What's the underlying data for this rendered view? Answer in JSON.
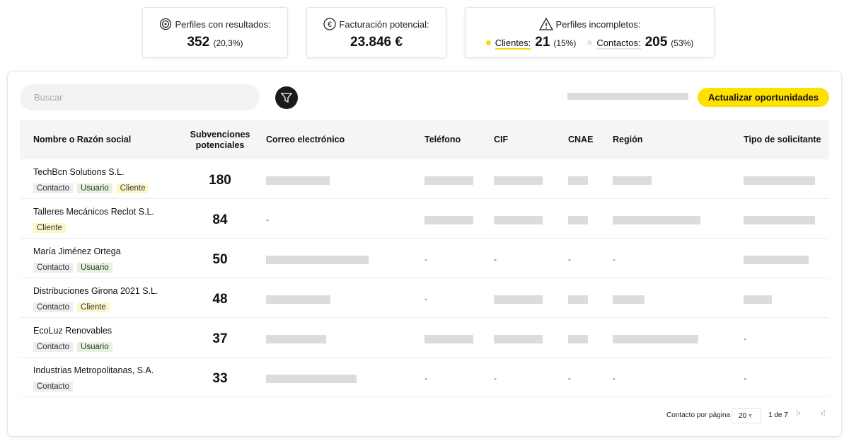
{
  "stats": [
    {
      "label": "Perfiles con resultados:",
      "value": "352",
      "note": "(20,3%)"
    },
    {
      "label": "Facturación potencial:",
      "value": "23.846 €"
    },
    {
      "label": "Perfiles incompletos:",
      "items": [
        {
          "label": "Clientes:",
          "value": "21",
          "note": "(15%)",
          "color": "#f5d90a"
        },
        {
          "label": "Contactos:",
          "value": "205",
          "note": "(53%)",
          "color": "#e6e6e6"
        }
      ]
    }
  ],
  "toolbar": {
    "search_placeholder": "Buscar",
    "button": "Actualizar oportunidades"
  },
  "table": {
    "columns": [
      "Nombre o Razón social",
      "Subvenciones potenciales",
      "Correo electrónico",
      "Teléfono",
      "CIF",
      "CNAE",
      "Región",
      "Tipo de solicitante"
    ],
    "rows": [
      {
        "name": "TechBcn Solutions S.L.",
        "tags": [
          {
            "label": "Contacto",
            "color": "#eeeeee"
          },
          {
            "label": "Usuario",
            "color": "#e6f2dc"
          },
          {
            "label": "Cliente",
            "color": "#fcf6c8"
          }
        ],
        "grants": 180,
        "cells": [
          null,
          null,
          null,
          null,
          null,
          null
        ]
      },
      {
        "name": "Talleres Mecánicos Reclot S.L.",
        "tags": [
          {
            "label": "Cliente",
            "color": "#fcf6c8"
          }
        ],
        "grants": 84,
        "cells": [
          "-",
          null,
          null,
          null,
          null,
          null
        ]
      },
      {
        "name": "María Jiménez Ortega",
        "tags": [
          {
            "label": "Contacto",
            "color": "#eeeeee"
          },
          {
            "label": "Usuario",
            "color": "#e6f2dc"
          }
        ],
        "grants": 50,
        "cells": [
          null,
          "-",
          "-",
          "-",
          "-",
          null
        ]
      },
      {
        "name": "Distribuciones Girona 2021 S.L.",
        "tags": [
          {
            "label": "Contacto",
            "color": "#eeeeee"
          },
          {
            "label": "Cliente",
            "color": "#fcf6c8"
          }
        ],
        "grants": 48,
        "cells": [
          null,
          "-",
          null,
          null,
          null,
          null
        ]
      },
      {
        "name": "EcoLuz Renovables",
        "tags": [
          {
            "label": "Contacto",
            "color": "#eeeeee"
          },
          {
            "label": "Usuario",
            "color": "#e6f2dc"
          }
        ],
        "grants": 37,
        "cells": [
          null,
          null,
          null,
          null,
          null,
          "-"
        ]
      },
      {
        "name": "Industrias Metropolitanas, S.A.",
        "tags": [
          {
            "label": "Contacto",
            "color": "#eeeeee"
          }
        ],
        "grants": 33,
        "cells": [
          null,
          "-",
          "-",
          "-",
          "-",
          "-"
        ]
      }
    ]
  },
  "pagination": {
    "per_page_label": "Contacto por página",
    "per_page": "20",
    "page": "1 de 7"
  }
}
